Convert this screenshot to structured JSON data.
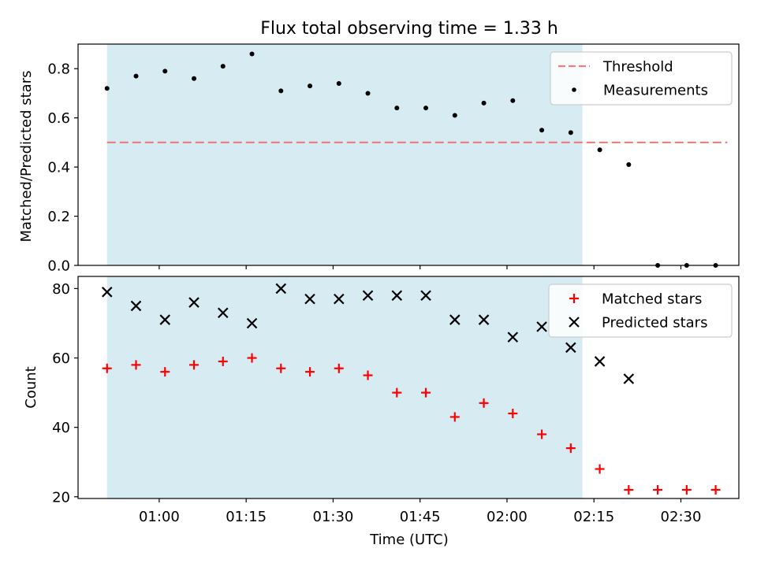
{
  "chart_data": [
    {
      "type": "scatter",
      "title": "Flux total observing time = 1.33 h",
      "xlabel": "",
      "ylabel": "Matched/Predicted stars",
      "ylim": [
        0,
        0.9
      ],
      "yticks": [
        0.0,
        0.2,
        0.4,
        0.6,
        0.8
      ],
      "ytick_labels": [
        "0.0",
        "0.2",
        "0.4",
        "0.6",
        "0.8"
      ],
      "xlim_minutes": [
        46,
        160
      ],
      "shaded_span_minutes": [
        51,
        133
      ],
      "threshold": {
        "name": "Threshold",
        "value": 0.5,
        "x_range_minutes": [
          51,
          158
        ],
        "color": "#f08080"
      },
      "series": [
        {
          "name": "Measurements",
          "marker": "dot",
          "color": "#000000",
          "x_minutes": [
            51,
            56,
            61,
            66,
            71,
            76,
            81,
            86,
            91,
            96,
            101,
            106,
            111,
            116,
            121,
            126,
            131,
            136,
            141,
            146,
            151,
            156
          ],
          "values": [
            0.72,
            0.77,
            0.79,
            0.76,
            0.81,
            0.86,
            0.71,
            0.73,
            0.74,
            0.7,
            0.64,
            0.64,
            0.61,
            0.66,
            0.67,
            0.55,
            0.54,
            0.47,
            0.41,
            0.0,
            0.0,
            0.0
          ]
        }
      ],
      "legend": [
        "Threshold",
        "Measurements"
      ],
      "legend_position": "top-right"
    },
    {
      "type": "scatter",
      "title": "",
      "xlabel": "Time (UTC)",
      "ylabel": "Count",
      "ylim": [
        19.5,
        83.5
      ],
      "yticks": [
        20,
        40,
        60,
        80
      ],
      "ytick_labels": [
        "20",
        "40",
        "60",
        "80"
      ],
      "xticks_minutes": [
        60,
        75,
        90,
        105,
        120,
        135,
        150
      ],
      "xtick_labels": [
        "01:00",
        "01:15",
        "01:30",
        "01:45",
        "02:00",
        "02:15",
        "02:30"
      ],
      "xlim_minutes": [
        46,
        160
      ],
      "shaded_span_minutes": [
        51,
        133
      ],
      "series": [
        {
          "name": "Matched stars",
          "marker": "plus",
          "color": "#ff0000",
          "x_minutes": [
            51,
            56,
            61,
            66,
            71,
            76,
            81,
            86,
            91,
            96,
            101,
            106,
            111,
            116,
            121,
            126,
            131,
            136,
            141,
            146,
            151,
            156
          ],
          "values": [
            57,
            58,
            56,
            58,
            59,
            60,
            57,
            56,
            57,
            55,
            50,
            50,
            43,
            47,
            44,
            38,
            34,
            28,
            22,
            22,
            22,
            22
          ]
        },
        {
          "name": "Predicted stars",
          "marker": "x",
          "color": "#000000",
          "x_minutes": [
            51,
            56,
            61,
            66,
            71,
            76,
            81,
            86,
            91,
            96,
            101,
            106,
            111,
            116,
            121,
            126,
            131,
            136,
            141
          ],
          "values": [
            79,
            75,
            71,
            76,
            73,
            70,
            80,
            77,
            77,
            78,
            78,
            78,
            71,
            71,
            66,
            69,
            63,
            59,
            54
          ]
        }
      ],
      "legend": [
        "Matched stars",
        "Predicted stars"
      ],
      "legend_position": "top-right"
    }
  ]
}
